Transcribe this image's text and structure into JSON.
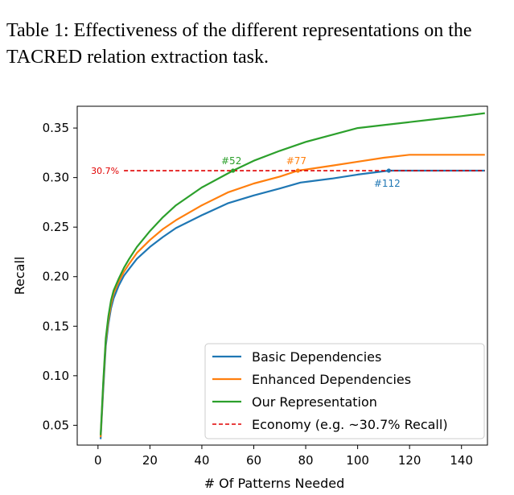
{
  "caption": "Table 1:  Effectiveness of the different representations on the TACRED relation extraction task.",
  "chart_data": {
    "type": "line",
    "xlabel": "# Of Patterns Needed",
    "ylabel": "Recall",
    "xlim": [
      -8,
      150
    ],
    "ylim": [
      0.03,
      0.372
    ],
    "xticks": [
      0,
      20,
      40,
      60,
      80,
      100,
      120,
      140
    ],
    "yticks": [
      0.05,
      0.1,
      0.15,
      0.2,
      0.25,
      0.3,
      0.35
    ],
    "ytick_labels": [
      "0.05",
      "0.10",
      "0.15",
      "0.20",
      "0.25",
      "0.30",
      "0.35"
    ],
    "grid": false,
    "legend_position": "lower-right",
    "series": [
      {
        "name": "Basic Dependencies",
        "color": "#1f77b4",
        "x": [
          1,
          2,
          3,
          4,
          5,
          6,
          8,
          10,
          12,
          15,
          20,
          25,
          30,
          40,
          50,
          60,
          70,
          78,
          90,
          100,
          112,
          120,
          130,
          140,
          149
        ],
        "y": [
          0.036,
          0.085,
          0.13,
          0.152,
          0.168,
          0.178,
          0.191,
          0.201,
          0.208,
          0.218,
          0.23,
          0.24,
          0.249,
          0.262,
          0.274,
          0.282,
          0.289,
          0.295,
          0.299,
          0.303,
          0.307,
          0.307,
          0.307,
          0.307,
          0.307
        ]
      },
      {
        "name": "Enhanced Dependencies",
        "color": "#ff7f0e",
        "x": [
          1,
          2,
          3,
          4,
          5,
          6,
          8,
          10,
          12,
          15,
          20,
          25,
          30,
          40,
          50,
          60,
          70,
          77,
          90,
          100,
          110,
          120,
          130,
          140,
          149
        ],
        "y": [
          0.038,
          0.09,
          0.135,
          0.156,
          0.172,
          0.183,
          0.195,
          0.205,
          0.213,
          0.224,
          0.237,
          0.248,
          0.257,
          0.272,
          0.285,
          0.294,
          0.301,
          0.307,
          0.312,
          0.316,
          0.32,
          0.323,
          0.323,
          0.323,
          0.323
        ]
      },
      {
        "name": "Our Representation",
        "color": "#2ca02c",
        "x": [
          1,
          2,
          3,
          4,
          5,
          6,
          8,
          10,
          12,
          15,
          20,
          25,
          30,
          40,
          52,
          60,
          70,
          80,
          90,
          100,
          110,
          120,
          130,
          140,
          149
        ],
        "y": [
          0.04,
          0.093,
          0.138,
          0.16,
          0.176,
          0.186,
          0.198,
          0.209,
          0.218,
          0.23,
          0.246,
          0.26,
          0.272,
          0.29,
          0.307,
          0.317,
          0.327,
          0.336,
          0.343,
          0.35,
          0.353,
          0.356,
          0.359,
          0.362,
          0.365
        ]
      }
    ],
    "threshold": {
      "name": "Economy (e.g. ~30.7% Recall)",
      "color": "#e00000",
      "y": 0.307,
      "x_start": 10,
      "x_end": 149,
      "label": "30.7%"
    },
    "annotations": [
      {
        "text": "#52",
        "x": 52,
        "y": 0.307,
        "color": "#2ca02c",
        "position": "above"
      },
      {
        "text": "#77",
        "x": 77,
        "y": 0.307,
        "color": "#ff7f0e",
        "position": "above"
      },
      {
        "text": "#112",
        "x": 112,
        "y": 0.307,
        "color": "#1f77b4",
        "position": "below"
      }
    ]
  }
}
